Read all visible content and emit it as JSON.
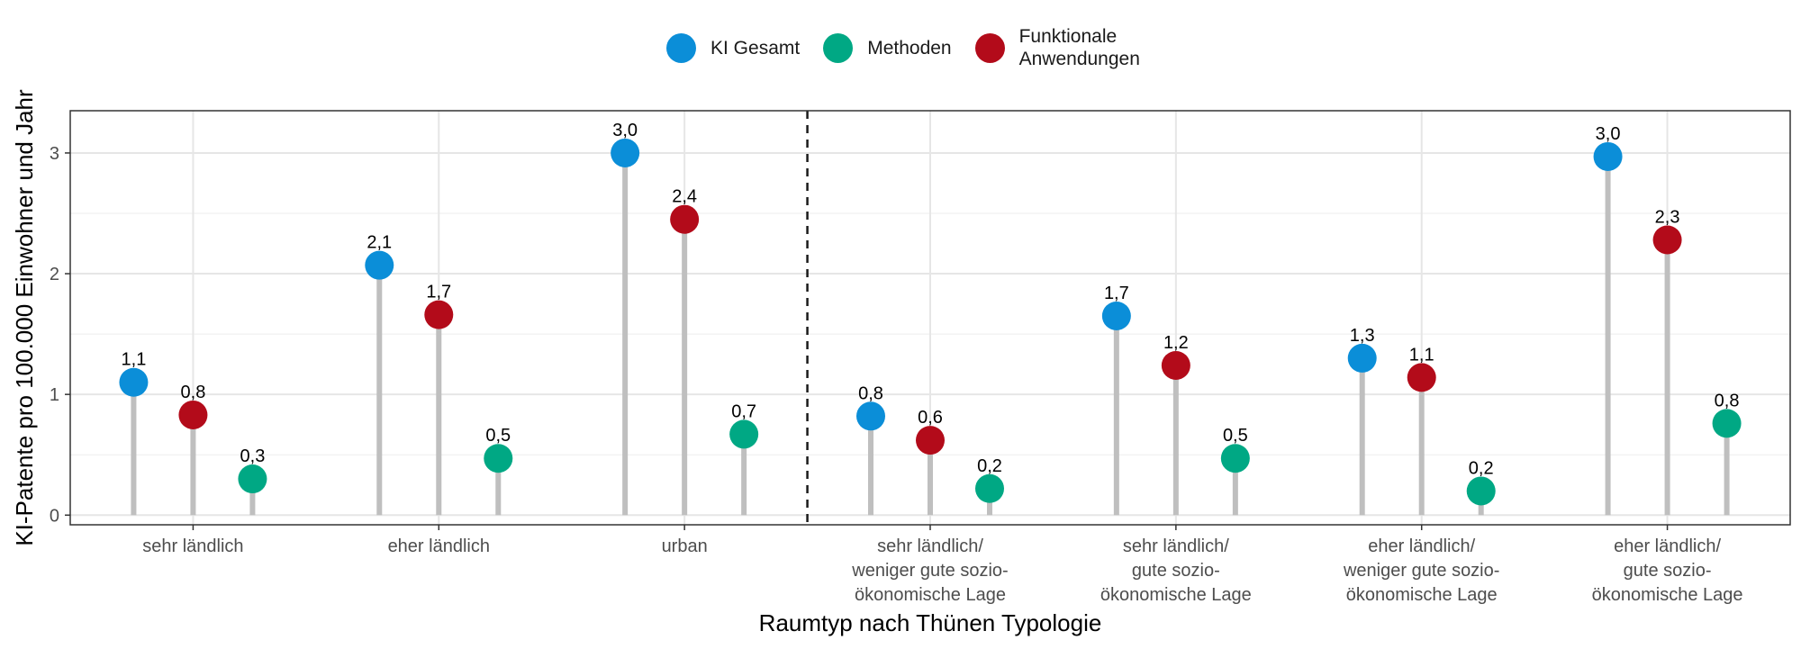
{
  "chart_data": {
    "type": "lollipop",
    "xlabel": "Raumtyp nach Thünen Typologie",
    "ylabel": "KI-Patente pro 100.000 Einwohner und Jahr",
    "ylim": [
      -0.08,
      3.35
    ],
    "yticks": [
      "0",
      "1",
      "2",
      "3"
    ],
    "grid": true,
    "legend_position": "top",
    "categories": [
      "sehr ländlich",
      "eher ländlich",
      "urban",
      "sehr ländlich/\nweniger gute sozio-\nökonomische Lage",
      "sehr ländlich/\ngute sozio-\nökonomische Lage",
      "eher ländlich/\nweniger gute sozio-\nökonomische Lage",
      "eher ländlich/\ngute sozio-\nökonomische Lage"
    ],
    "separator_after_category": 2,
    "series": [
      {
        "name": "KI Gesamt",
        "color": "#0b8ed8",
        "values": [
          1.1,
          2.07,
          3.0,
          0.82,
          1.65,
          1.3,
          2.97
        ],
        "labels": [
          "1,1",
          "2,1",
          "3,0",
          "0,8",
          "1,7",
          "1,3",
          "3,0"
        ]
      },
      {
        "name": "Funktionale\nAnwendungen",
        "color": "#b30b1a",
        "values": [
          0.83,
          1.66,
          2.45,
          0.62,
          1.24,
          1.14,
          2.28
        ],
        "labels": [
          "0,8",
          "1,7",
          "2,4",
          "0,6",
          "1,2",
          "1,1",
          "2,3"
        ]
      },
      {
        "name": "Methoden",
        "color": "#00a884",
        "values": [
          0.3,
          0.47,
          0.67,
          0.22,
          0.47,
          0.2,
          0.76
        ],
        "labels": [
          "0,3",
          "0,5",
          "0,7",
          "0,2",
          "0,5",
          "0,2",
          "0,8"
        ]
      }
    ],
    "legend_order": [
      "KI Gesamt",
      "Methoden",
      "Funktionale\nAnwendungen"
    ]
  }
}
